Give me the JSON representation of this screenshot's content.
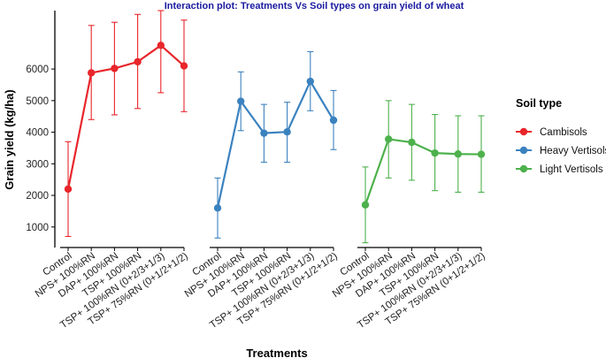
{
  "chart_data": {
    "type": "line",
    "title": "Interaction plot: Treatments Vs Soil types on grain yield of wheat",
    "title_color": "#1a1aa0",
    "xlabel": "Treatments",
    "ylabel": "Grain yield (kg/ha)",
    "ylim": [
      350,
      7850
    ],
    "yticks": [
      1000,
      2000,
      3000,
      4000,
      5000,
      6000
    ],
    "grid": false,
    "legend_title": "Soil type",
    "legend_position": "right",
    "categories": [
      "Control",
      "NPS+ 100%RN",
      "DAP+ 100%RN",
      "TSP+ 100%RN",
      "TSP+ 100%RN (0+2/3+1/3)",
      "TSP+ 75%RN (0+1/2+1/2)"
    ],
    "series": [
      {
        "name": "Cambisols",
        "color": "#e8262b",
        "values": [
          2200,
          5880,
          6020,
          6230,
          6750,
          6100
        ],
        "error_low": [
          700,
          4400,
          4550,
          4750,
          5250,
          4650
        ],
        "error_high": [
          3700,
          7380,
          7480,
          7730,
          8230,
          7550
        ]
      },
      {
        "name": "Heavy Vertisols",
        "color": "#3b82bf",
        "values": [
          1600,
          4980,
          3970,
          4010,
          5610,
          4380
        ],
        "error_low": [
          650,
          4050,
          3050,
          3050,
          4680,
          3450
        ],
        "error_high": [
          2550,
          5910,
          4880,
          4950,
          6550,
          5320
        ]
      },
      {
        "name": "Light Vertisols",
        "color": "#4db14c",
        "values": [
          1700,
          3780,
          3680,
          3340,
          3310,
          3300
        ],
        "error_low": [
          500,
          2550,
          2480,
          2150,
          2100,
          2100
        ],
        "error_high": [
          2900,
          5000,
          4880,
          4560,
          4520,
          4520
        ]
      }
    ]
  }
}
